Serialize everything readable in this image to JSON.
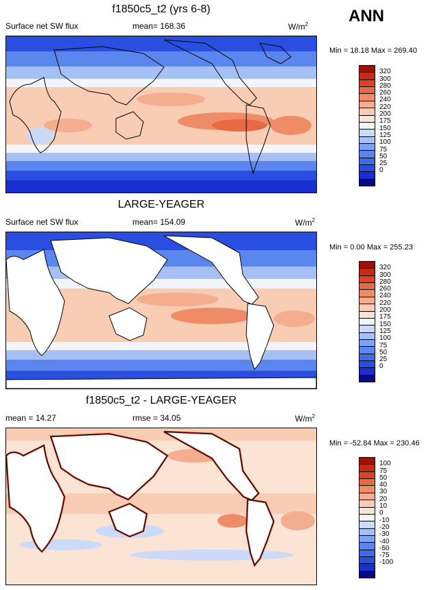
{
  "season": "ANN",
  "colors": {
    "abs_scale": [
      "#0a0a80",
      "#1a2fd0",
      "#2a4fe0",
      "#3d6ae8",
      "#5a86ee",
      "#7ea2f2",
      "#a6c0f6",
      "#cbdaf9",
      "#f4f4fb",
      "#fbe4d4",
      "#f9cdb4",
      "#f4ad8e",
      "#ef8c68",
      "#e86a44",
      "#dc4424",
      "#c52a14",
      "#9a1208"
    ],
    "diff_scale": [
      "#0a0a80",
      "#1a2fd0",
      "#2a4fe0",
      "#3d6ae8",
      "#5a86ee",
      "#7ea2f2",
      "#a6c0f6",
      "#cbdaf9",
      "#f4f4fb",
      "#fbe4d4",
      "#f9cdb4",
      "#f4ad8e",
      "#ef8c68",
      "#e86a44",
      "#dc4424",
      "#c52a14",
      "#9a1208"
    ],
    "land": "#ffffff"
  },
  "panels": [
    {
      "title": "f1850c5_t2 (yrs 6-8)",
      "left_label": "Surface net SW flux",
      "center_label": "mean= 168.36",
      "units": "W/m",
      "units_sup": "2",
      "minmax": "Min =  18.18 Max = 269.40",
      "scale_labels": [
        "320",
        "300",
        "280",
        "260",
        "240",
        "220",
        "200",
        "175",
        "150",
        "125",
        "100",
        "75",
        "50",
        "25",
        "0"
      ]
    },
    {
      "title": "LARGE-YEAGER",
      "left_label": "Surface net SW flux",
      "center_label": "mean= 154.09",
      "units": "W/m",
      "units_sup": "2",
      "minmax": "Min =   0.00 Max = 255.23",
      "scale_labels": [
        "320",
        "300",
        "280",
        "260",
        "240",
        "220",
        "200",
        "175",
        "150",
        "125",
        "100",
        "75",
        "50",
        "25",
        "0"
      ]
    },
    {
      "title": "f1850c5_t2 - LARGE-YEAGER",
      "left_label": "mean =  14.27",
      "center_label": "rmse =  34.05",
      "units": "W/m",
      "units_sup": "2",
      "minmax": "Min = -52.84 Max = 230.46",
      "scale_labels": [
        "100",
        "75",
        "50",
        "40",
        "30",
        "20",
        "10",
        "0",
        "-10",
        "-20",
        "-30",
        "-40",
        "-50",
        "-75",
        "-100"
      ]
    }
  ]
}
